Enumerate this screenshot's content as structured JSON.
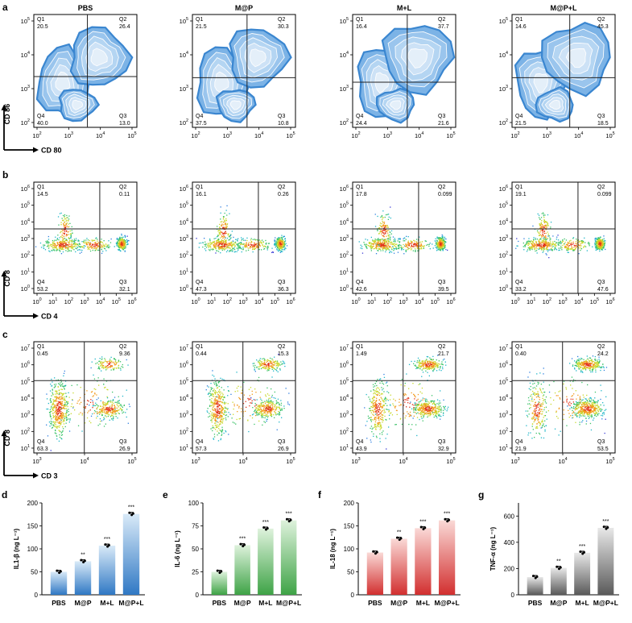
{
  "panels_flow": [
    {
      "letter": "a",
      "ylabel": "CD 86",
      "xlabel": "CD 80",
      "kind": "contour",
      "xticks": [
        "10^2",
        "10^3",
        "10^4",
        "10^5"
      ],
      "yticks": [
        "10^2",
        "10^3",
        "10^4",
        "10^5"
      ],
      "groups": [
        {
          "title": "PBS",
          "q1": "20.5",
          "q2": "26.4",
          "q3": "13.0",
          "q4": "40.0",
          "qx": 0.52,
          "qy": 0.55
        },
        {
          "title": "M@P",
          "q1": "21.5",
          "q2": "30.3",
          "q3": "10.8",
          "q4": "37.5",
          "qx": 0.53,
          "qy": 0.56
        },
        {
          "title": "M+L",
          "q1": "16.4",
          "q2": "37.7",
          "q3": "21.6",
          "q4": "24.4",
          "qx": 0.53,
          "qy": 0.6
        },
        {
          "title": "M@P+L",
          "q1": "14.6",
          "q2": "45.3",
          "q3": "18.5",
          "q4": "21.5",
          "qx": 0.56,
          "qy": 0.56
        }
      ]
    },
    {
      "letter": "b",
      "ylabel": "CD 8",
      "xlabel": "CD 4",
      "kind": "dots",
      "xticks": [
        "10^0",
        "10^1",
        "10^2",
        "10^3",
        "10^4",
        "10^5",
        "10^6"
      ],
      "yticks": [
        "10^0",
        "10^1",
        "10^2",
        "10^3",
        "10^4",
        "10^5",
        "10^6"
      ],
      "groups": [
        {
          "title": "",
          "q1": "14.5",
          "q2": "0.11",
          "q3": "32.1",
          "q4": "53.2",
          "qx": 0.64,
          "qy": 0.42
        },
        {
          "title": "",
          "q1": "16.1",
          "q2": "0.26",
          "q3": "36.3",
          "q4": "47.3",
          "qx": 0.64,
          "qy": 0.42
        },
        {
          "title": "",
          "q1": "17.8",
          "q2": "0.099",
          "q3": "39.5",
          "q4": "42.6",
          "qx": 0.64,
          "qy": 0.42
        },
        {
          "title": "",
          "q1": "19.1",
          "q2": "0.099",
          "q3": "47.6",
          "q4": "33.2",
          "qx": 0.64,
          "qy": 0.42
        }
      ]
    },
    {
      "letter": "c",
      "ylabel": "CD 8",
      "xlabel": "CD 3",
      "kind": "dots",
      "xticks": [
        "10^3",
        "10^4",
        "10^5"
      ],
      "yticks": [
        "10^1",
        "10^2",
        "10^3",
        "10^4",
        "10^5",
        "10^6",
        "10^7"
      ],
      "groups": [
        {
          "title": "",
          "q1": "0.45",
          "q2": "9.36",
          "q3": "26.9",
          "q4": "63.3",
          "qx": 0.49,
          "qy": 0.35
        },
        {
          "title": "",
          "q1": "0.44",
          "q2": "15.3",
          "q3": "26.9",
          "q4": "57.3",
          "qx": 0.49,
          "qy": 0.35
        },
        {
          "title": "",
          "q1": "1.49",
          "q2": "21.7",
          "q3": "32.9",
          "q4": "43.9",
          "qx": 0.49,
          "qy": 0.35
        },
        {
          "title": "",
          "q1": "0.40",
          "q2": "24.2",
          "q3": "53.5",
          "q4": "21.9",
          "qx": 0.49,
          "qy": 0.35
        }
      ]
    }
  ],
  "quadrant_labels": {
    "q1": "Q1",
    "q2": "Q2",
    "q3": "Q3",
    "q4": "Q4"
  },
  "chart_data": [
    {
      "type": "bar",
      "letter": "d",
      "categories": [
        "PBS",
        "M@P",
        "M+L",
        "M@P+L"
      ],
      "values": [
        50,
        73,
        107,
        176
      ],
      "significance": [
        "",
        "**",
        "***",
        "***"
      ],
      "ylabel": "IL1-β (ng L⁻¹)",
      "ylim": [
        0,
        200
      ],
      "yticks": [
        0,
        50,
        100,
        150,
        200
      ],
      "color": "#2f78c4",
      "color_light": "#d9eaf8"
    },
    {
      "type": "bar",
      "letter": "e",
      "categories": [
        "PBS",
        "M@P",
        "M+L",
        "M@P+L"
      ],
      "values": [
        25,
        54,
        72,
        81
      ],
      "significance": [
        "",
        "***",
        "***",
        "***"
      ],
      "ylabel": "IL-6 (ng L⁻¹)",
      "ylim": [
        0,
        100
      ],
      "yticks": [
        0,
        25,
        50,
        75,
        100
      ],
      "color": "#3ea346",
      "color_light": "#def2dc"
    },
    {
      "type": "bar",
      "letter": "f",
      "categories": [
        "PBS",
        "M@P",
        "M+L",
        "M@P+L"
      ],
      "values": [
        92,
        122,
        145,
        162
      ],
      "significance": [
        "",
        "**",
        "***",
        "***"
      ],
      "ylabel": "IL-18 (ng L⁻¹)",
      "ylim": [
        0,
        200
      ],
      "yticks": [
        0,
        50,
        100,
        150,
        200
      ],
      "color": "#d22f2f",
      "color_light": "#fad9d6"
    },
    {
      "type": "bar",
      "letter": "g",
      "categories": [
        "PBS",
        "M@P",
        "M+L",
        "M@P+L"
      ],
      "values": [
        135,
        205,
        320,
        510
      ],
      "significance": [
        "",
        "**",
        "***",
        "***"
      ],
      "ylabel": "TNF-α (ng L⁻¹)",
      "ylim": [
        0,
        700
      ],
      "yticks": [
        0,
        200,
        400,
        600
      ],
      "color": "#5a5a5a",
      "color_light": "#e8e8e8"
    }
  ]
}
